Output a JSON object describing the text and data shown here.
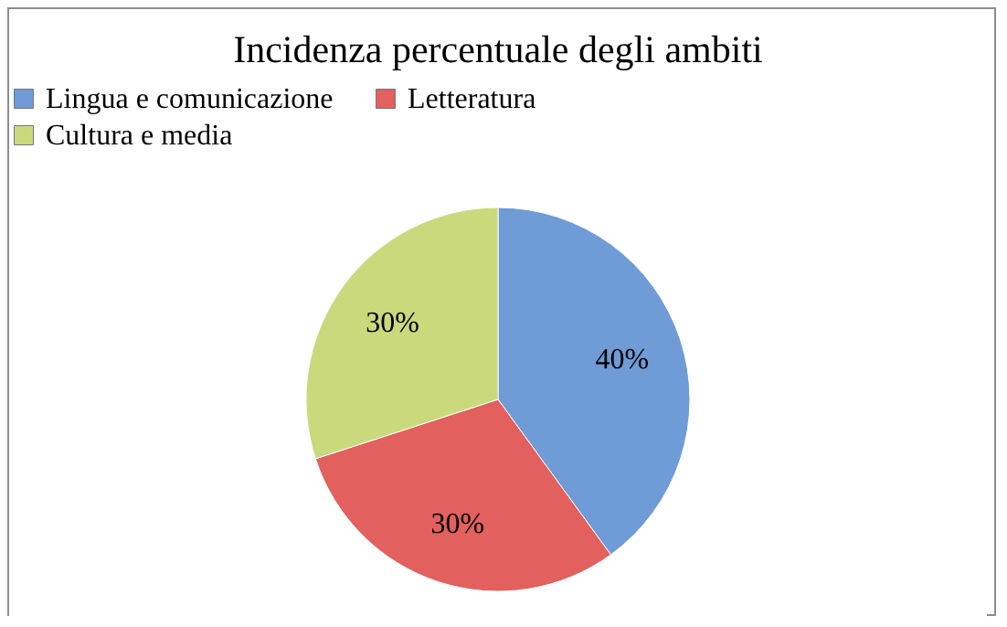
{
  "chart_data": {
    "type": "pie",
    "title": "Incidenza percentuale degli ambiti",
    "categories": [
      "Lingua e comunicazione",
      "Letteratura",
      "Cultura e media"
    ],
    "values": [
      40,
      30,
      30
    ],
    "value_labels": [
      "40%",
      "30%",
      "30%"
    ],
    "colors": [
      "#6f9bd6",
      "#e2605e",
      "#cad97c"
    ],
    "legend": "top"
  }
}
